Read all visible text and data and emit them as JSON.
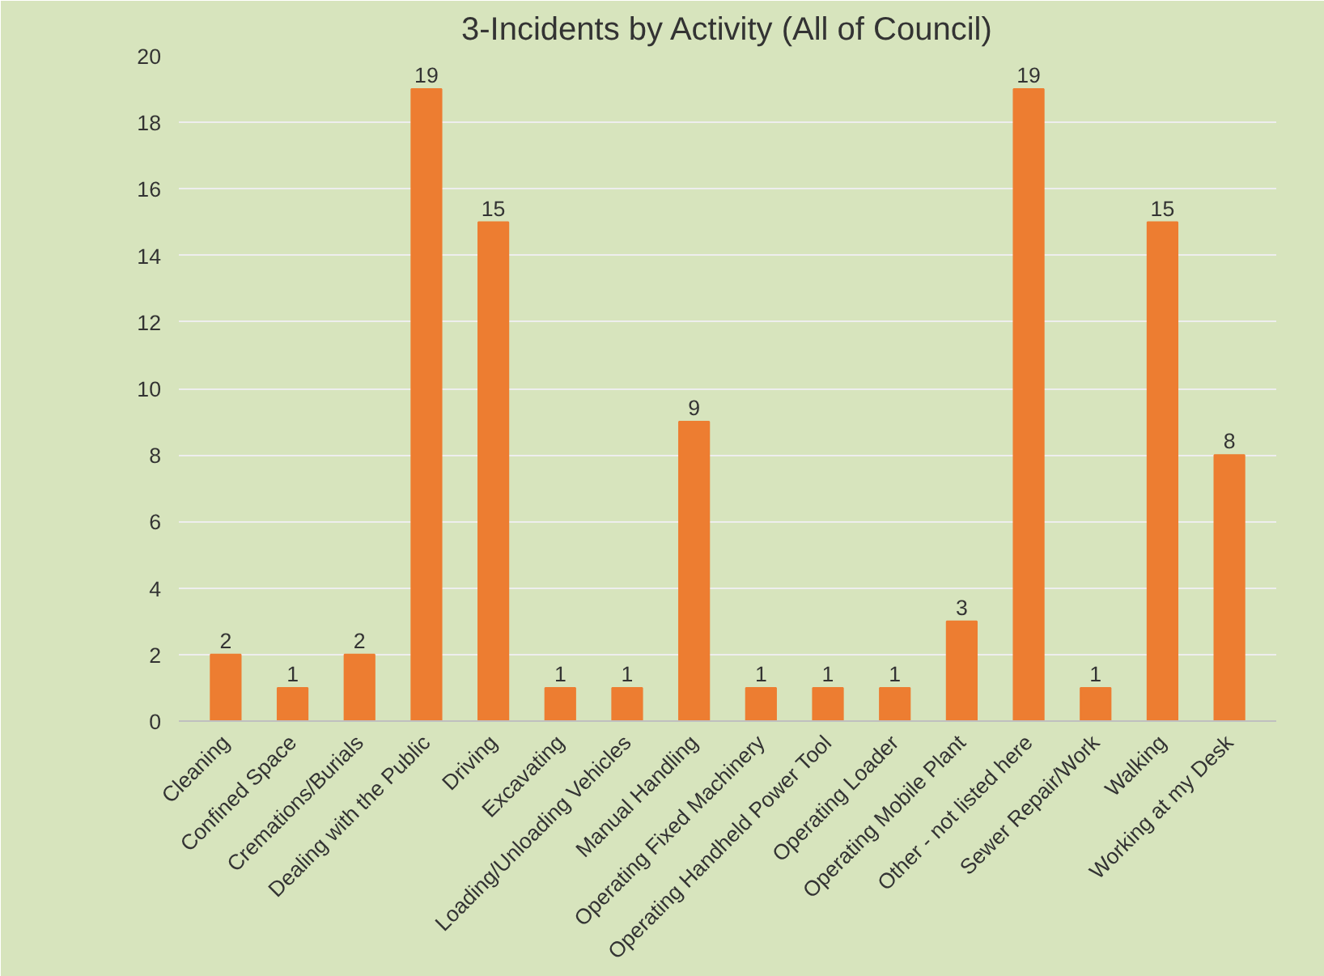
{
  "chart_data": {
    "type": "bar",
    "title": "3-Incidents by Activity (All of Council)",
    "categories": [
      "Cleaning",
      "Confined Space",
      "Cremations/Burials",
      "Dealing with the Public",
      "Driving",
      "Excavating",
      "Loading/Unloading Vehicles",
      "Manual Handling",
      "Operating Fixed Machinery",
      "Operating Handheld Power Tool",
      "Operating Loader",
      "Operating Mobile Plant",
      "Other - not listed here",
      "Sewer Repair/Work",
      "Walking",
      "Working at my Desk"
    ],
    "values": [
      2,
      1,
      2,
      19,
      15,
      1,
      1,
      9,
      1,
      1,
      1,
      3,
      19,
      1,
      15,
      8
    ],
    "color": "#ed7d31",
    "ylim": [
      0,
      20
    ],
    "yticks": [
      0,
      2,
      4,
      6,
      8,
      10,
      12,
      14,
      16,
      18,
      20
    ],
    "grid": "y",
    "data_labels": true
  }
}
